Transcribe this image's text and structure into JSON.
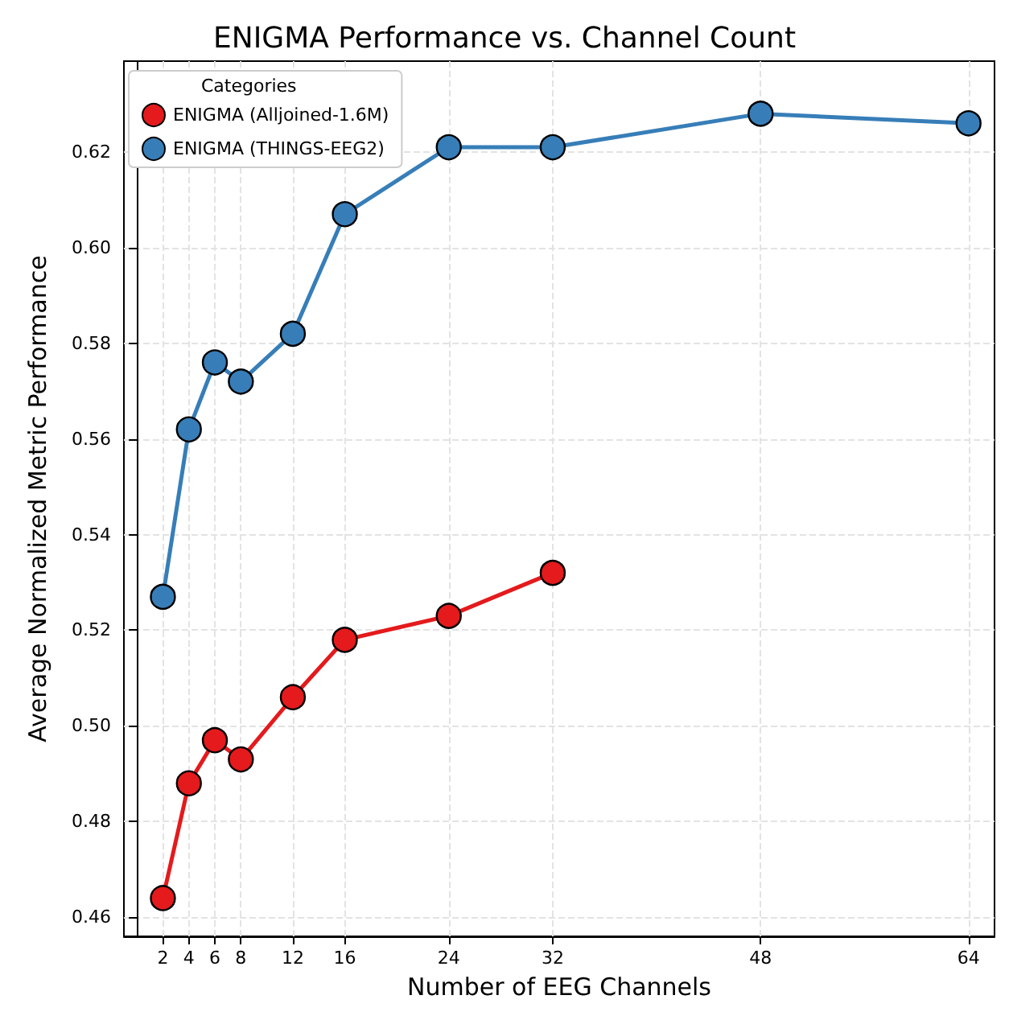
{
  "chart_data": {
    "type": "line",
    "title": "ENIGMA Performance vs. Channel Count",
    "xlabel": "Number of EEG Channels",
    "ylabel": "Average Normalized Metric Performance",
    "legend_title": "Categories",
    "series": [
      {
        "name": "ENIGMA (Alljoined-1.6M)",
        "color": "#e41a1c",
        "x": [
          2,
          4,
          6,
          8,
          12,
          16,
          24,
          32
        ],
        "values": [
          0.464,
          0.488,
          0.497,
          0.493,
          0.506,
          0.518,
          0.523,
          0.532
        ]
      },
      {
        "name": "ENIGMA (THINGS-EEG2)",
        "color": "#377eb8",
        "x": [
          2,
          4,
          6,
          8,
          12,
          16,
          24,
          32,
          48,
          64
        ],
        "values": [
          0.527,
          0.562,
          0.576,
          0.572,
          0.582,
          0.607,
          0.621,
          0.621,
          0.628,
          0.626
        ]
      }
    ],
    "xlim": [
      -1,
      66
    ],
    "ylim": [
      0.456,
      0.639
    ],
    "xticks": [
      2,
      4,
      6,
      8,
      12,
      16,
      24,
      32,
      48,
      64
    ],
    "yticks": [
      0.46,
      0.48,
      {
        "value": 0.5,
        "label": "0.50"
      },
      0.52,
      0.54,
      0.56,
      0.58,
      {
        "value": 0.6,
        "label": "0.60"
      },
      0.62
    ],
    "grid": true,
    "legend": "top left",
    "marker": "circle",
    "line_style": "solid"
  }
}
